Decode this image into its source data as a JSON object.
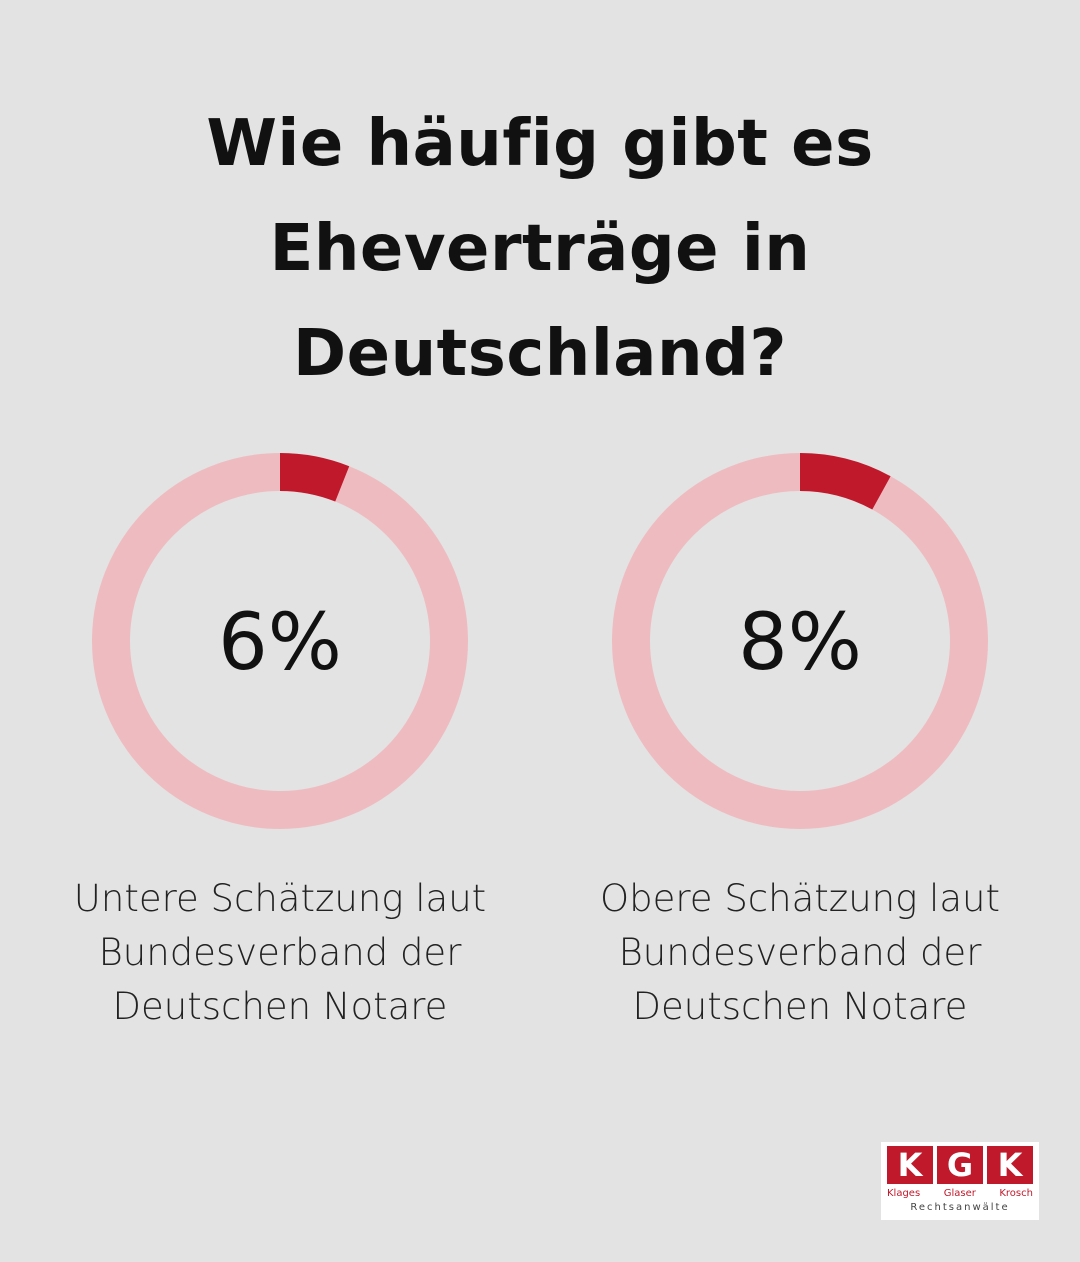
{
  "title": "Wie häufig gibt es Eheverträge in Deutschland?",
  "chart_data": [
    {
      "type": "pie",
      "variant": "donut",
      "values": [
        6,
        94
      ],
      "center_label": "6%",
      "caption": "Untere Schätzung laut Bundesverband der Deutschen Notare",
      "colors": {
        "fill": "#c0192b",
        "track": "#eebcc0"
      }
    },
    {
      "type": "pie",
      "variant": "donut",
      "values": [
        8,
        92
      ],
      "center_label": "8%",
      "caption": "Obere Schätzung laut Bundesverband der Deutschen Notare",
      "colors": {
        "fill": "#c0192b",
        "track": "#eebcc0"
      }
    }
  ],
  "logo": {
    "letters": [
      "K",
      "G",
      "K"
    ],
    "names": [
      "Klages",
      "Glaser",
      "Krosch"
    ],
    "subtitle": "Rechtsanwälte"
  },
  "colors": {
    "background": "#e3e3e3",
    "accent": "#c0192b",
    "track": "#eebcc0"
  }
}
